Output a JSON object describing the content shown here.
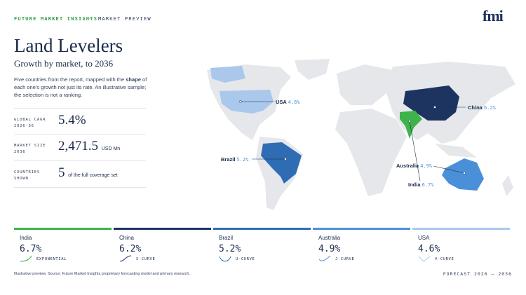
{
  "header": {
    "brand": "FUTURE MARKET INSIGHTS",
    "section": "MARKET PREVIEW",
    "logo": "fmi"
  },
  "title": "Land Levelers",
  "subtitle": "Growth by market, to 2036",
  "description": [
    "Five countries from the report, mapped with the ",
    "shape",
    " of each one's growth not just its rate. An illustrative sample; the selection is not a ranking."
  ],
  "stats": [
    {
      "label": "GLOBAL CAGR 2026-36",
      "value": "5.4%"
    },
    {
      "label": "MARKET SIZE 2036",
      "value": "2,471.5",
      "unit": "USD Mn"
    },
    {
      "label": "COUNTRIES SHOWN",
      "value": "5",
      "unit": "of the full coverage set"
    }
  ],
  "map_labels": [
    {
      "country": "USA",
      "value": "4.6%"
    },
    {
      "country": "China",
      "value": "6.2%"
    },
    {
      "country": "Brazil",
      "value": "5.2%"
    },
    {
      "country": "Australia",
      "value": "4.9%"
    },
    {
      "country": "India",
      "value": "6.7%"
    }
  ],
  "cards": [
    {
      "country": "India",
      "value": "6.7%",
      "curve": "EXPONENTIAL"
    },
    {
      "country": "China",
      "value": "6.2%",
      "curve": "S-CURVE"
    },
    {
      "country": "Brazil",
      "value": "5.2%",
      "curve": "U-CURVE"
    },
    {
      "country": "Australia",
      "value": "4.9%",
      "curve": "J-CURVE"
    },
    {
      "country": "USA",
      "value": "4.6%",
      "curve": "V-CURVE"
    }
  ],
  "footer": {
    "note": "Illustrative preview. Source: Future Market Insights proprietary forecasting model and primary research.",
    "range": "FORECAST 2026 – 2036"
  }
}
